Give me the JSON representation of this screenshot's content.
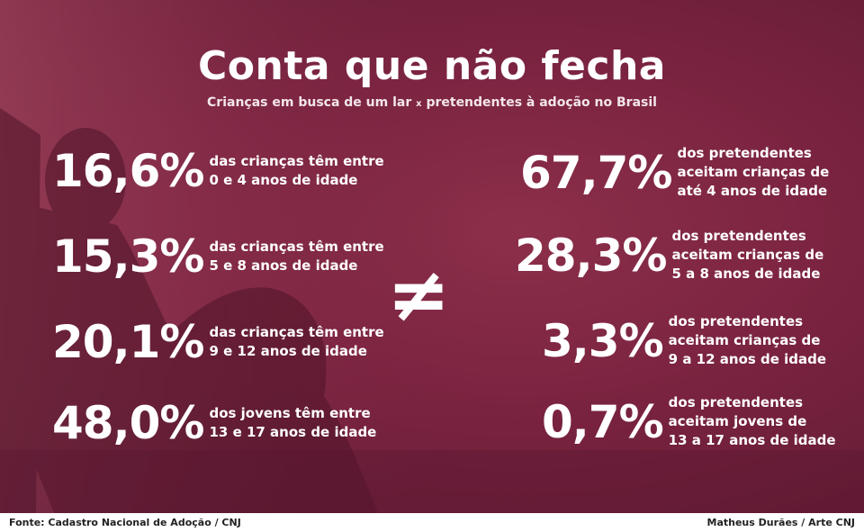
{
  "title": "Conta que não fecha",
  "subtitle": {
    "part1": "Crianças em busca de um lar",
    "sep": "x",
    "part2": "pretendentes à adoção no Brasil"
  },
  "left": [
    {
      "pct": "16,6%",
      "text": "das crianças têm entre\n0 e 4 anos de idade"
    },
    {
      "pct": "15,3%",
      "text": "das crianças têm entre\n5 e 8 anos de idade"
    },
    {
      "pct": "20,1%",
      "text": "das crianças têm entre\n9 e 12 anos de idade"
    },
    {
      "pct": "48,0%",
      "text": "dos jovens têm entre\n13 e 17 anos de idade"
    }
  ],
  "right": [
    {
      "pct": "67,7%",
      "text": "dos pretendentes\naceitam crianças de\naté 4 anos de idade"
    },
    {
      "pct": "28,3%",
      "text": "dos pretendentes\naceitam crianças de\n5 a 8 anos de idade"
    },
    {
      "pct": "3,3%",
      "text": "dos pretendentes\naceitam crianças de\n9 a 12 anos de idade"
    },
    {
      "pct": "0,7%",
      "text": "dos pretendentes\naceitam jovens de\n13 a 17 anos de idade"
    }
  ],
  "neq_symbol": "≠",
  "footer": {
    "source": "Fonte: Cadastro Nacional de Adoção / CNJ",
    "credit": "Matheus Durães / Arte CNJ"
  },
  "colors": {
    "background": "#7a2340",
    "text": "#ffffff"
  }
}
